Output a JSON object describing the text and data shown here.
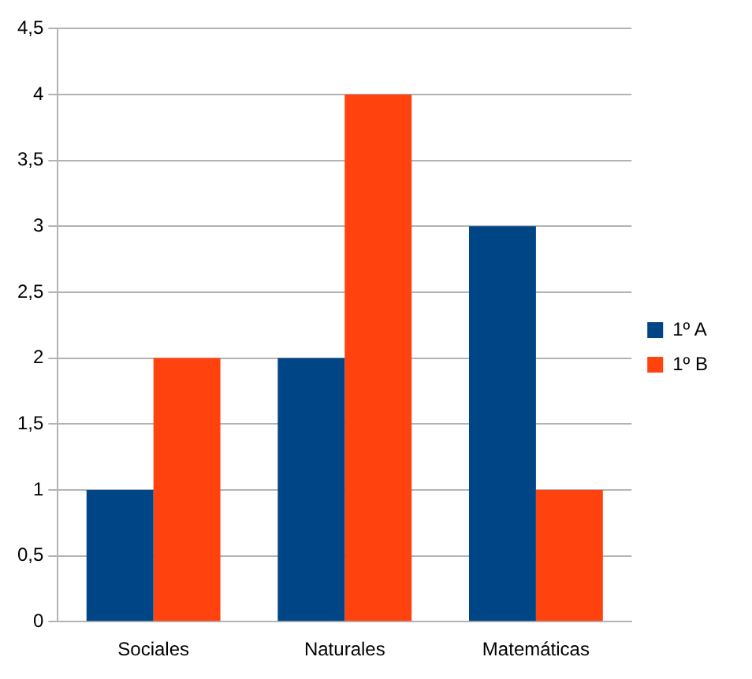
{
  "chart_data": {
    "type": "bar",
    "categories": [
      "Sociales",
      "Naturales",
      "Matemáticas"
    ],
    "series": [
      {
        "name": "1º A",
        "color": "#004586",
        "values": [
          1,
          2,
          3
        ]
      },
      {
        "name": "1º B",
        "color": "#ff420e",
        "values": [
          2,
          4,
          1
        ]
      }
    ],
    "ylim": [
      0,
      4.5
    ],
    "yticks": [
      0,
      {
        "value": 0.5,
        "label": "0,5"
      },
      1,
      {
        "value": 1.5,
        "label": "1,5"
      },
      2,
      {
        "value": 2.5,
        "label": "2,5"
      },
      3,
      {
        "value": 3.5,
        "label": "3,5"
      },
      4,
      {
        "value": 4.5,
        "label": "4,5"
      }
    ],
    "grid": "y",
    "legend": "right"
  }
}
